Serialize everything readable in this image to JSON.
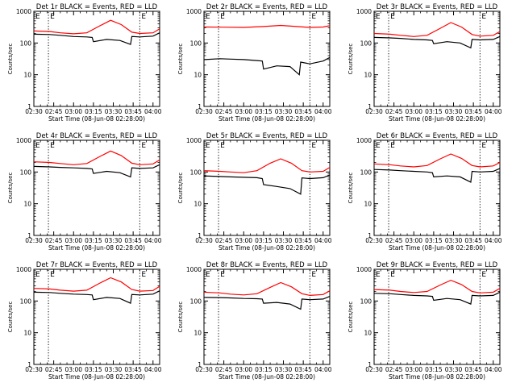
{
  "figure": {
    "xlabel": "Start Time (08-Jun-08 02:28:00)",
    "ylabel": "Counts/sec",
    "x_tick_labels": [
      "02:30",
      "02:45",
      "03:00",
      "03:15",
      "03:30",
      "03:45",
      "04:00"
    ],
    "y_tick_labels": [
      "1",
      "10",
      "100",
      "1000"
    ],
    "marker_label": "E",
    "colors": {
      "events": "#000000",
      "lld": "#ff0000",
      "axes": "#000000",
      "background": "#ffffff"
    }
  },
  "chart_data": [
    {
      "type": "line",
      "title": "Det 1r BLACK = Events, RED = LLD",
      "ylabel": "Counts/sec",
      "xlabel": "Start Time (08-Jun-08 02:28:00)",
      "x_range": [
        "02:30",
        "04:05"
      ],
      "ylim": [
        1,
        1000
      ],
      "y_scale": "log",
      "vlines": [
        "02:41",
        "03:50"
      ],
      "series": [
        {
          "name": "Events",
          "color": "#000000",
          "x": [
            "02:30",
            "02:42",
            "02:50",
            "03:00",
            "03:10",
            "03:14",
            "03:15",
            "03:25",
            "03:35",
            "03:43",
            "03:44",
            "03:50",
            "04:00",
            "04:05"
          ],
          "values": [
            190,
            185,
            175,
            160,
            155,
            150,
            110,
            130,
            120,
            90,
            160,
            155,
            165,
            210
          ]
        },
        {
          "name": "LLD",
          "color": "#ff0000",
          "x": [
            "02:30",
            "02:42",
            "02:50",
            "03:00",
            "03:10",
            "03:20",
            "03:28",
            "03:36",
            "03:44",
            "03:50",
            "04:00",
            "04:05"
          ],
          "values": [
            240,
            230,
            210,
            195,
            210,
            350,
            520,
            380,
            220,
            200,
            210,
            280
          ]
        }
      ]
    },
    {
      "type": "line",
      "title": "Det 2r BLACK = Events, RED = LLD",
      "ylabel": "Counts/sec",
      "xlabel": "Start Time (08-Jun-08 02:28:00)",
      "x_range": [
        "02:30",
        "04:05"
      ],
      "ylim": [
        1,
        1000
      ],
      "y_scale": "log",
      "vlines": [
        "02:41",
        "03:50"
      ],
      "series": [
        {
          "name": "Events",
          "color": "#000000",
          "x": [
            "02:30",
            "02:42",
            "02:50",
            "03:00",
            "03:10",
            "03:14",
            "03:15",
            "03:25",
            "03:35",
            "03:42",
            "03:43",
            "03:50",
            "04:00",
            "04:05"
          ],
          "values": [
            30,
            32,
            31,
            30,
            28,
            27,
            15,
            19,
            18,
            10,
            25,
            22,
            27,
            35
          ]
        },
        {
          "name": "LLD",
          "color": "#ff0000",
          "x": [
            "02:30",
            "02:45",
            "03:00",
            "03:15",
            "03:28",
            "03:40",
            "03:50",
            "04:00",
            "04:05"
          ],
          "values": [
            320,
            315,
            310,
            330,
            360,
            330,
            310,
            320,
            350
          ]
        }
      ]
    },
    {
      "type": "line",
      "title": "Det 3r BLACK = Events, RED = LLD",
      "ylabel": "Counts/sec",
      "xlabel": "Start Time (08-Jun-08 02:28:00)",
      "x_range": [
        "02:30",
        "04:05"
      ],
      "ylim": [
        1,
        1000
      ],
      "y_scale": "log",
      "vlines": [
        "02:41",
        "03:50"
      ],
      "series": [
        {
          "name": "Events",
          "color": "#000000",
          "x": [
            "02:30",
            "02:42",
            "02:50",
            "03:00",
            "03:10",
            "03:14",
            "03:15",
            "03:25",
            "03:35",
            "03:43",
            "03:44",
            "03:50",
            "04:00",
            "04:05"
          ],
          "values": [
            150,
            145,
            140,
            130,
            125,
            120,
            95,
            110,
            100,
            70,
            130,
            125,
            130,
            160
          ]
        },
        {
          "name": "LLD",
          "color": "#ff0000",
          "x": [
            "02:30",
            "02:42",
            "02:50",
            "03:00",
            "03:10",
            "03:20",
            "03:28",
            "03:36",
            "03:44",
            "03:50",
            "04:00",
            "04:05"
          ],
          "values": [
            200,
            190,
            175,
            160,
            175,
            290,
            440,
            320,
            185,
            165,
            175,
            230
          ]
        }
      ]
    },
    {
      "type": "line",
      "title": "Det 4r BLACK = Events, RED = LLD",
      "ylabel": "Counts/sec",
      "xlabel": "Start Time (08-Jun-08 02:28:00)",
      "x_range": [
        "02:30",
        "04:05"
      ],
      "ylim": [
        1,
        1000
      ],
      "y_scale": "log",
      "vlines": [
        "02:41",
        "03:50"
      ],
      "series": [
        {
          "name": "Events",
          "color": "#000000",
          "x": [
            "02:30",
            "02:42",
            "02:50",
            "03:00",
            "03:10",
            "03:14",
            "03:15",
            "03:25",
            "03:35",
            "03:43",
            "03:44",
            "03:50",
            "04:00",
            "04:05"
          ],
          "values": [
            150,
            145,
            140,
            135,
            130,
            125,
            90,
            105,
            95,
            70,
            135,
            130,
            135,
            170
          ]
        },
        {
          "name": "LLD",
          "color": "#ff0000",
          "x": [
            "02:30",
            "02:42",
            "02:50",
            "03:00",
            "03:10",
            "03:20",
            "03:28",
            "03:36",
            "03:44",
            "03:50",
            "04:00",
            "04:05"
          ],
          "values": [
            210,
            200,
            185,
            170,
            185,
            310,
            460,
            330,
            190,
            170,
            180,
            240
          ]
        }
      ]
    },
    {
      "type": "line",
      "title": "Det 5r BLACK = Events, RED = LLD",
      "ylabel": "Counts/sec",
      "xlabel": "Start Time (08-Jun-08 02:28:00)",
      "x_range": [
        "02:30",
        "04:05"
      ],
      "ylim": [
        1,
        1000
      ],
      "y_scale": "log",
      "vlines": [
        "02:41",
        "03:50"
      ],
      "series": [
        {
          "name": "Events",
          "color": "#000000",
          "x": [
            "02:30",
            "02:42",
            "02:50",
            "03:00",
            "03:10",
            "03:14",
            "03:15",
            "03:25",
            "03:35",
            "03:43",
            "03:44",
            "03:50",
            "04:00",
            "04:05"
          ],
          "values": [
            75,
            72,
            70,
            68,
            66,
            62,
            40,
            35,
            30,
            20,
            65,
            62,
            66,
            80
          ]
        },
        {
          "name": "LLD",
          "color": "#ff0000",
          "x": [
            "02:30",
            "02:42",
            "02:50",
            "03:00",
            "03:10",
            "03:20",
            "03:28",
            "03:36",
            "03:44",
            "03:50",
            "04:00",
            "04:05"
          ],
          "values": [
            110,
            105,
            100,
            95,
            110,
            190,
            260,
            190,
            110,
            100,
            105,
            140
          ]
        }
      ]
    },
    {
      "type": "line",
      "title": "Det 6r BLACK = Events, RED = LLD",
      "ylabel": "Counts/sec",
      "xlabel": "Start Time (08-Jun-08 02:28:00)",
      "x_range": [
        "02:30",
        "04:05"
      ],
      "ylim": [
        1,
        1000
      ],
      "y_scale": "log",
      "vlines": [
        "02:41",
        "03:50"
      ],
      "series": [
        {
          "name": "Events",
          "color": "#000000",
          "x": [
            "02:30",
            "02:42",
            "02:50",
            "03:00",
            "03:10",
            "03:14",
            "03:15",
            "03:25",
            "03:35",
            "03:43",
            "03:44",
            "03:50",
            "04:00",
            "04:05"
          ],
          "values": [
            120,
            115,
            110,
            105,
            100,
            95,
            70,
            75,
            70,
            48,
            105,
            100,
            105,
            130
          ]
        },
        {
          "name": "LLD",
          "color": "#ff0000",
          "x": [
            "02:30",
            "02:42",
            "02:50",
            "03:00",
            "03:10",
            "03:20",
            "03:28",
            "03:36",
            "03:44",
            "03:50",
            "04:00",
            "04:05"
          ],
          "values": [
            180,
            170,
            155,
            145,
            160,
            260,
            370,
            270,
            160,
            145,
            155,
            200
          ]
        }
      ]
    },
    {
      "type": "line",
      "title": "Det 7r BLACK = Events, RED = LLD",
      "ylabel": "Counts/sec",
      "xlabel": "Start Time (08-Jun-08 02:28:00)",
      "x_range": [
        "02:30",
        "04:05"
      ],
      "ylim": [
        1,
        1000
      ],
      "y_scale": "log",
      "vlines": [
        "02:41",
        "03:50"
      ],
      "series": [
        {
          "name": "Events",
          "color": "#000000",
          "x": [
            "02:30",
            "02:42",
            "02:50",
            "03:00",
            "03:10",
            "03:14",
            "03:15",
            "03:25",
            "03:35",
            "03:43",
            "03:44",
            "03:50",
            "04:00",
            "04:05"
          ],
          "values": [
            190,
            185,
            175,
            165,
            160,
            155,
            110,
            130,
            120,
            85,
            160,
            155,
            165,
            210
          ]
        },
        {
          "name": "LLD",
          "color": "#ff0000",
          "x": [
            "02:30",
            "02:42",
            "02:50",
            "03:00",
            "03:10",
            "03:20",
            "03:28",
            "03:36",
            "03:44",
            "03:50",
            "04:00",
            "04:05"
          ],
          "values": [
            250,
            240,
            220,
            205,
            220,
            370,
            540,
            400,
            230,
            205,
            215,
            290
          ]
        }
      ]
    },
    {
      "type": "line",
      "title": "Det 8r BLACK = Events, RED = LLD",
      "ylabel": "Counts/sec",
      "xlabel": "Start Time (08-Jun-08 02:28:00)",
      "x_range": [
        "02:30",
        "04:05"
      ],
      "ylim": [
        1,
        1000
      ],
      "y_scale": "log",
      "vlines": [
        "02:41",
        "03:50"
      ],
      "series": [
        {
          "name": "Events",
          "color": "#000000",
          "x": [
            "02:30",
            "02:42",
            "02:50",
            "03:00",
            "03:10",
            "03:14",
            "03:15",
            "03:25",
            "03:35",
            "03:43",
            "03:44",
            "03:50",
            "04:00",
            "04:05"
          ],
          "values": [
            130,
            128,
            125,
            120,
            118,
            115,
            85,
            90,
            80,
            55,
            115,
            110,
            115,
            140
          ]
        },
        {
          "name": "LLD",
          "color": "#ff0000",
          "x": [
            "02:30",
            "02:42",
            "02:50",
            "03:00",
            "03:10",
            "03:20",
            "03:28",
            "03:36",
            "03:44",
            "03:50",
            "04:00",
            "04:05"
          ],
          "values": [
            190,
            180,
            165,
            155,
            170,
            270,
            380,
            280,
            170,
            150,
            160,
            210
          ]
        }
      ]
    },
    {
      "type": "line",
      "title": "Det 9r BLACK = Events, RED = LLD",
      "ylabel": "Counts/sec",
      "xlabel": "Start Time (08-Jun-08 02:28:00)",
      "x_range": [
        "02:30",
        "04:05"
      ],
      "ylim": [
        1,
        1000
      ],
      "y_scale": "log",
      "vlines": [
        "02:41",
        "03:50"
      ],
      "series": [
        {
          "name": "Events",
          "color": "#000000",
          "x": [
            "02:30",
            "02:42",
            "02:50",
            "03:00",
            "03:10",
            "03:14",
            "03:15",
            "03:25",
            "03:35",
            "03:43",
            "03:44",
            "03:50",
            "04:00",
            "04:05"
          ],
          "values": [
            175,
            170,
            160,
            150,
            145,
            140,
            105,
            120,
            110,
            80,
            150,
            145,
            150,
            190
          ]
        },
        {
          "name": "LLD",
          "color": "#ff0000",
          "x": [
            "02:30",
            "02:42",
            "02:50",
            "03:00",
            "03:10",
            "03:20",
            "03:28",
            "03:36",
            "03:44",
            "03:50",
            "04:00",
            "04:05"
          ],
          "values": [
            230,
            220,
            200,
            185,
            200,
            320,
            450,
            330,
            200,
            180,
            190,
            250
          ]
        }
      ]
    }
  ]
}
